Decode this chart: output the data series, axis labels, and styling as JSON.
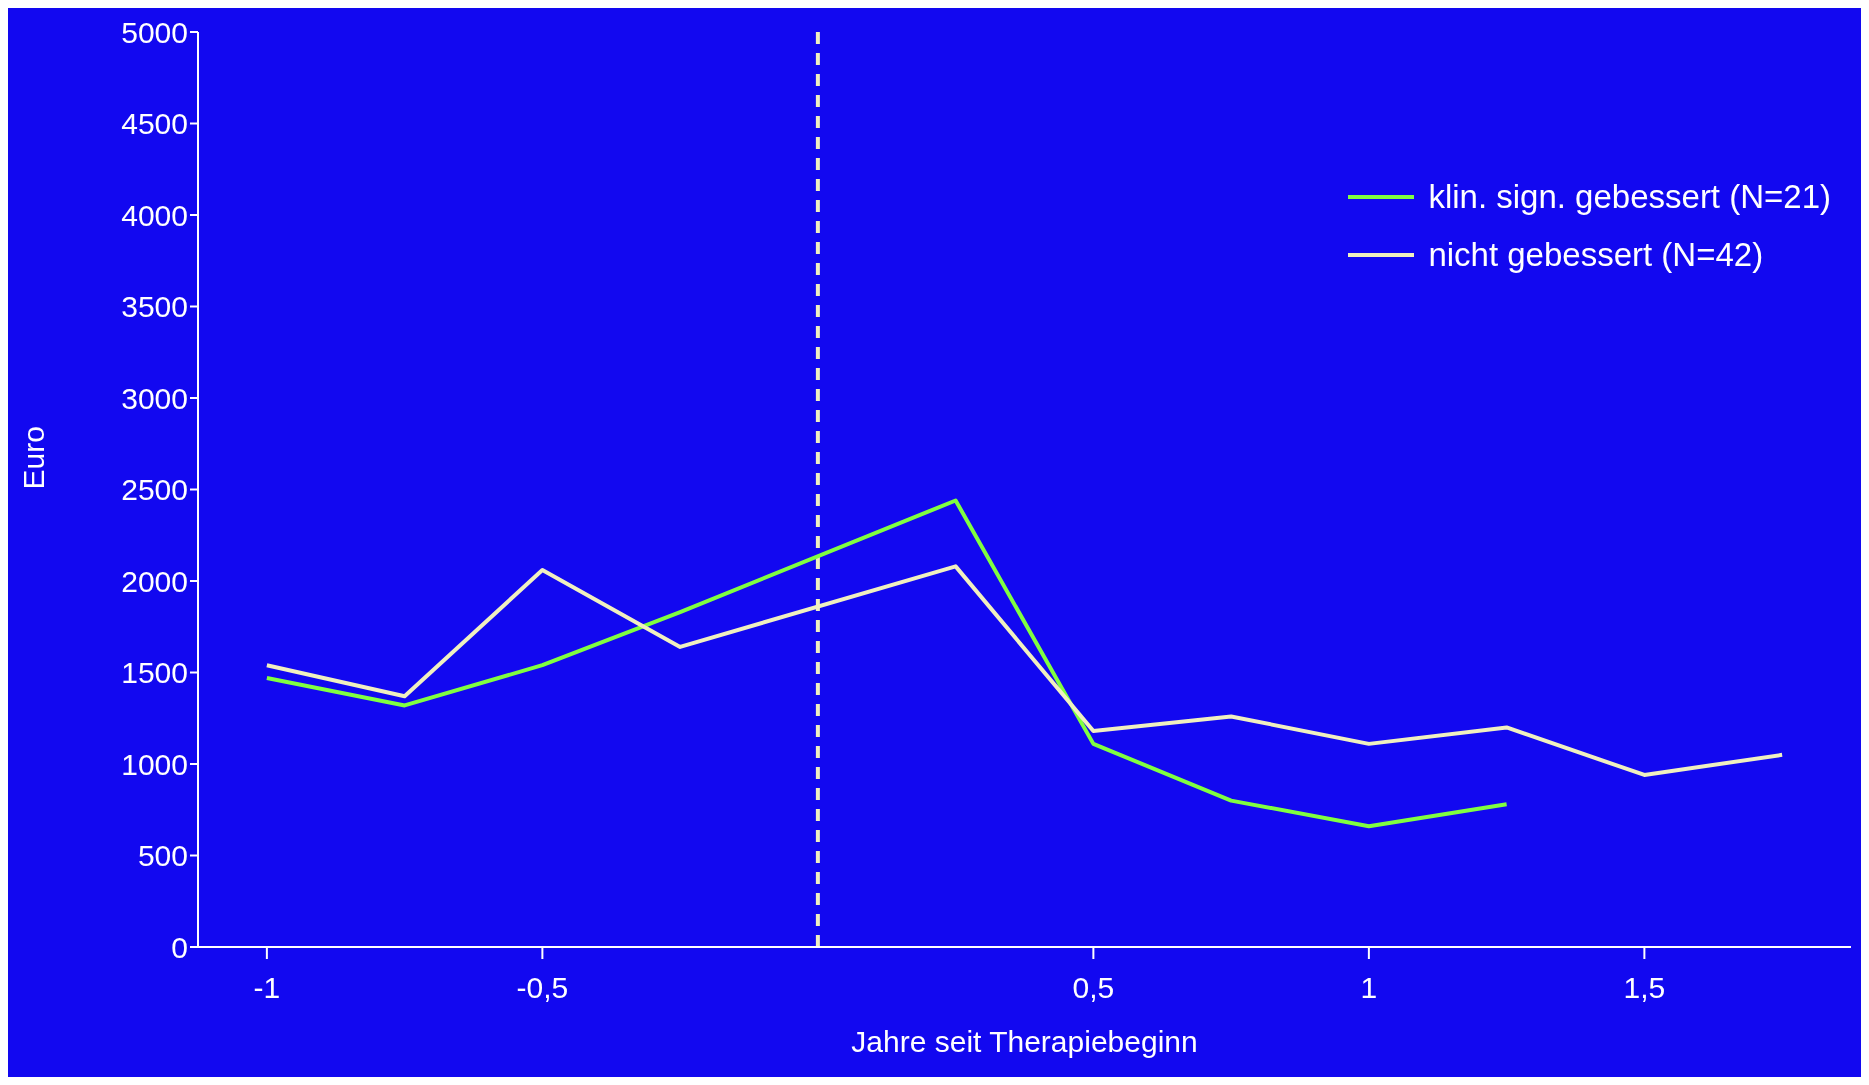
{
  "chart_data": {
    "type": "line",
    "xlabel": "Jahre seit Therapiebeginn",
    "ylabel": "Euro",
    "x": [
      -1,
      -0.75,
      -0.5,
      -0.25,
      0.25,
      0.5,
      0.75,
      1,
      1.25,
      1.5,
      1.75
    ],
    "xlim": [
      -1.125,
      1.875
    ],
    "xticks": [
      {
        "value": -1,
        "label": "-1"
      },
      {
        "value": -0.5,
        "label": "-0,5"
      },
      {
        "value": 0.5,
        "label": "0,5"
      },
      {
        "value": 1,
        "label": "1"
      },
      {
        "value": 1.5,
        "label": "1,5"
      }
    ],
    "ylim": [
      0,
      5000
    ],
    "yticks": [
      0,
      500,
      1000,
      1500,
      2000,
      2500,
      3000,
      3500,
      4000,
      4500,
      5000
    ],
    "series": [
      {
        "name": "klin. sign. gebessert (N=21)",
        "color": "#80ff40",
        "values": [
          1470,
          1320,
          1540,
          1830,
          2440,
          1110,
          800,
          660,
          780,
          null,
          null
        ]
      },
      {
        "name": "nicht gebessert (N=42)",
        "color": "#f0f0c0",
        "values": [
          1540,
          1370,
          2060,
          1640,
          2080,
          1180,
          1260,
          1110,
          1200,
          940,
          1050
        ]
      }
    ],
    "ref_lines": [
      {
        "axis": "x",
        "value": 0,
        "color": "#f0f0c0",
        "line_style": "dashed"
      }
    ],
    "legend": "top right",
    "marker": "none",
    "line_style": "solid"
  }
}
